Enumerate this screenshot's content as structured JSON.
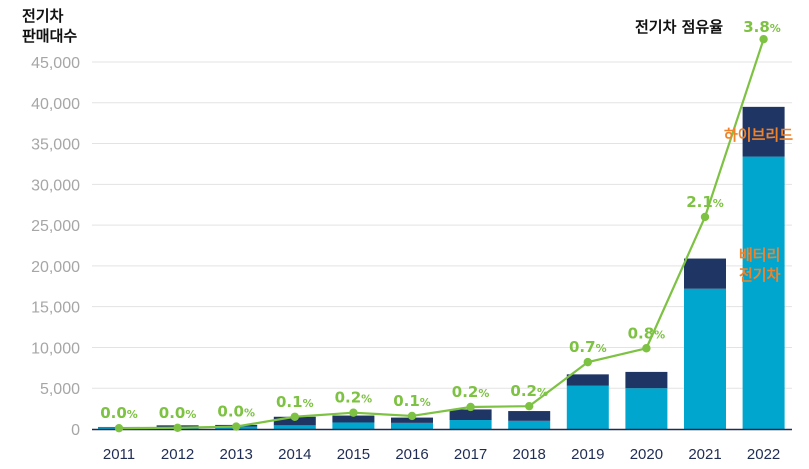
{
  "chart_data": {
    "type": "bar",
    "stacked": true,
    "ylabel_lines": [
      "전기차",
      "판매대수"
    ],
    "ylim": [
      0,
      45000
    ],
    "yticks": [
      "0",
      "5,000",
      "10,000",
      "15,000",
      "20,000",
      "25,000",
      "30,000",
      "35,000",
      "40,000",
      "45,000"
    ],
    "categories": [
      "2011",
      "2012",
      "2013",
      "2014",
      "2015",
      "2016",
      "2017",
      "2018",
      "2019",
      "2020",
      "2021",
      "2022"
    ],
    "series": [
      {
        "name": "배터리 전기차",
        "name_lines": [
          "배터리",
          "전기차"
        ],
        "color": "#00a6ce",
        "values": [
          200,
          250,
          300,
          450,
          800,
          750,
          1100,
          1000,
          5300,
          5000,
          17200,
          33400
        ]
      },
      {
        "name": "하이브리드",
        "color": "#1f3564",
        "values": [
          50,
          200,
          200,
          1050,
          850,
          650,
          1300,
          1200,
          1400,
          2000,
          3700,
          6100
        ]
      }
    ],
    "line": {
      "name": "전기차 점유율",
      "color": "#7dc242",
      "share_labels": [
        "0.0",
        "0.0",
        "0.0",
        "0.1",
        "0.2",
        "0.1",
        "0.2",
        "0.2",
        "0.7",
        "0.8",
        "2.1",
        "3.8"
      ],
      "share_unit": "%",
      "plot_values": [
        100,
        150,
        300,
        1500,
        2000,
        1600,
        2700,
        2800,
        8200,
        9900,
        26000,
        47800
      ]
    },
    "grid": true
  }
}
